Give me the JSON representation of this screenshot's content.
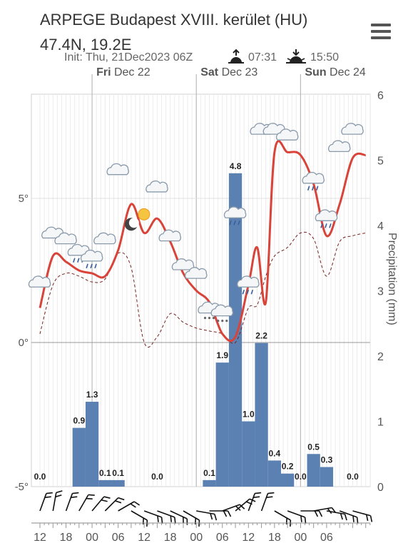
{
  "header": {
    "location": "ARPEGE Budapest XVIII. kerület (HU)",
    "coords": "47.4N, 19.2E",
    "init": "Init: Thu, 21Dec2023 06Z",
    "sunrise": "07:31",
    "sunset": "15:50"
  },
  "icons": {
    "menu": "hamburger-menu-icon",
    "sunrise": "sunrise-icon",
    "sunset": "sunset-icon"
  },
  "colors": {
    "temperature": "#d9443a",
    "dewpoint": "#7a2020",
    "precipitation": "#5b80b2",
    "wind": "#111111"
  },
  "chart_data": {
    "type": "bar",
    "days": [
      {
        "day": "Fri",
        "date": "Dec 22"
      },
      {
        "day": "Sat",
        "date": "Dec 23"
      },
      {
        "day": "Sun",
        "date": "Dec 24"
      }
    ],
    "x_tick_labels": [
      "12",
      "18",
      "00",
      "06",
      "12",
      "18",
      "00",
      "06",
      "12",
      "18",
      "00",
      "06"
    ],
    "y_left_ticks": [
      "5°",
      "0°",
      "-5°"
    ],
    "y_right_ticks": [
      "6",
      "5",
      "4",
      "3",
      "2",
      "1",
      "0"
    ],
    "y_right_label": "Precipitation (mm)",
    "ylim_left": [
      -5,
      5
    ],
    "ylim_right": [
      0,
      6
    ],
    "precipitation": {
      "values": [
        0.0,
        null,
        null,
        0.9,
        1.3,
        0.1,
        0.1,
        null,
        null,
        0.0,
        null,
        null,
        null,
        0.1,
        1.9,
        4.8,
        1.0,
        2.2,
        0.4,
        0.2,
        0.0,
        0.5,
        0.3,
        null,
        0.0
      ],
      "labels": [
        "0.0",
        "",
        "",
        "0.9",
        "1.3",
        "0.1",
        "0.1",
        "",
        "",
        "0.0",
        "",
        "",
        "",
        "0.1",
        "1.9",
        "4.8",
        "1.0",
        "2.2",
        "0.4",
        "0.2",
        "0.0",
        "0.5",
        "0.3",
        "",
        "0.0"
      ]
    },
    "temperature": {
      "values": [
        1.2,
        3.0,
        2.8,
        2.5,
        2.4,
        2.3,
        3.2,
        4.8,
        3.8,
        4.3,
        3.5,
        2.4,
        1.8,
        1.4,
        0.3,
        0.2,
        2.0,
        3.3,
        1.4,
        6.6,
        6.6,
        6.5,
        5.5,
        3.7,
        4.8,
        6.4,
        6.5
      ],
      "hours_from_start": [
        0,
        3,
        6,
        9,
        12,
        15,
        18,
        21,
        24,
        27,
        30,
        33,
        36,
        39,
        42,
        45,
        48,
        50,
        52,
        54,
        57,
        60,
        63,
        66,
        69,
        72,
        75
      ]
    },
    "dewpoint": {
      "values": [
        0.3,
        2.0,
        2.4,
        2.3,
        2.1,
        2.2,
        3.1,
        2.6,
        0.0,
        0.2,
        1.0,
        0.7,
        0.5,
        0.4,
        0.3,
        0.0,
        1.2,
        1.3,
        2.3,
        3.0,
        3.3,
        3.8,
        3.6,
        2.3,
        3.5,
        3.7,
        3.8
      ],
      "hours_from_start": [
        0,
        3,
        6,
        9,
        12,
        15,
        18,
        21,
        24,
        27,
        30,
        33,
        36,
        39,
        42,
        45,
        48,
        50,
        52,
        54,
        57,
        60,
        63,
        66,
        69,
        72,
        75
      ]
    },
    "weather_icons": [
      {
        "icon": "cloud-icon",
        "hour": 0,
        "temp": 1.9
      },
      {
        "icon": "cloud-icon",
        "hour": 3,
        "temp": 3.6
      },
      {
        "icon": "cloud-icon",
        "hour": 6,
        "temp": 3.4
      },
      {
        "icon": "cloud-rain-icon",
        "hour": 9,
        "temp": 3.0
      },
      {
        "icon": "cloud-rain-icon",
        "hour": 12,
        "temp": 2.8
      },
      {
        "icon": "cloud-icon",
        "hour": 15,
        "temp": 3.4
      },
      {
        "icon": "cloud-icon",
        "hour": 18,
        "temp": 5.8
      },
      {
        "icon": "moon-sun-icon",
        "hour": 21,
        "temp": 4.2
      },
      {
        "icon": "cloud-icon",
        "hour": 27,
        "temp": 5.2
      },
      {
        "icon": "cloud-icon",
        "hour": 30,
        "temp": 3.5
      },
      {
        "icon": "cloud-icon",
        "hour": 33,
        "temp": 2.5
      },
      {
        "icon": "cloud-icon",
        "hour": 36,
        "temp": 2.2
      },
      {
        "icon": "cloud-snow-icon",
        "hour": 39,
        "temp": 1.0
      },
      {
        "icon": "cloud-snow-icon",
        "hour": 42,
        "temp": 0.9
      },
      {
        "icon": "cloud-rain-icon",
        "hour": 45,
        "temp": 4.3
      },
      {
        "icon": "cloud-rain-icon",
        "hour": 48,
        "temp": 1.9
      },
      {
        "icon": "cloud-icon",
        "hour": 51,
        "temp": 7.2
      },
      {
        "icon": "cloud-icon",
        "hour": 54,
        "temp": 7.2
      },
      {
        "icon": "cloud-icon",
        "hour": 57,
        "temp": 7.0
      },
      {
        "icon": "cloud-rain-icon",
        "hour": 63,
        "temp": 5.5
      },
      {
        "icon": "cloud-rain-icon",
        "hour": 66,
        "temp": 4.2
      },
      {
        "icon": "cloud-icon",
        "hour": 69,
        "temp": 6.6
      },
      {
        "icon": "cloud-icon",
        "hour": 72,
        "temp": 7.2
      }
    ],
    "wind_directions_deg": [
      200,
      190,
      200,
      210,
      220,
      225,
      240,
      300,
      290,
      290,
      295,
      300,
      280,
      270,
      250,
      230,
      200,
      200,
      300,
      290,
      270,
      260,
      280,
      290,
      285
    ]
  }
}
